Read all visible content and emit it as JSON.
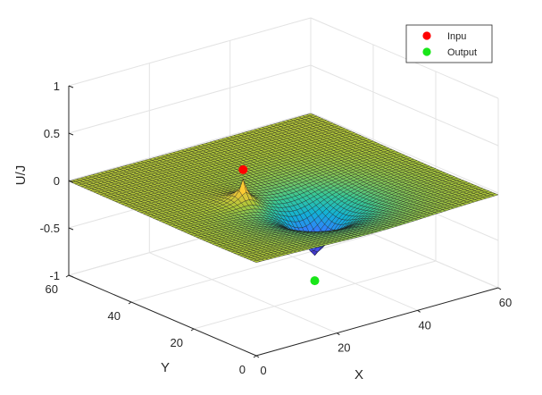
{
  "chart_data": {
    "type": "surface3d",
    "title": "",
    "xlabel": "X",
    "ylabel": "Y",
    "zlabel": "U/J",
    "xlim": [
      0,
      60
    ],
    "ylim": [
      0,
      60
    ],
    "zlim": [
      -1,
      1
    ],
    "xticks": [
      "0",
      "20",
      "40",
      "60"
    ],
    "yticks": [
      "0",
      "20",
      "40",
      "60"
    ],
    "zticks": [
      "-1",
      "-0.5",
      "0",
      "0.5",
      "1"
    ],
    "grid": true,
    "colormap": "parula",
    "grid_size": 61,
    "surface": {
      "peak": {
        "x": 20,
        "y": 30,
        "z": 0.3
      },
      "trough": {
        "x": 30,
        "y": 20,
        "z": -0.6
      }
    },
    "series": [
      {
        "name": "Inpu",
        "x": 20,
        "y": 30,
        "z": 0.3,
        "color": "#ff0000"
      },
      {
        "name": "Output",
        "x": 30,
        "y": 20,
        "z": -0.85,
        "color": "#19e619"
      }
    ],
    "legend": {
      "position": "top-right"
    }
  }
}
